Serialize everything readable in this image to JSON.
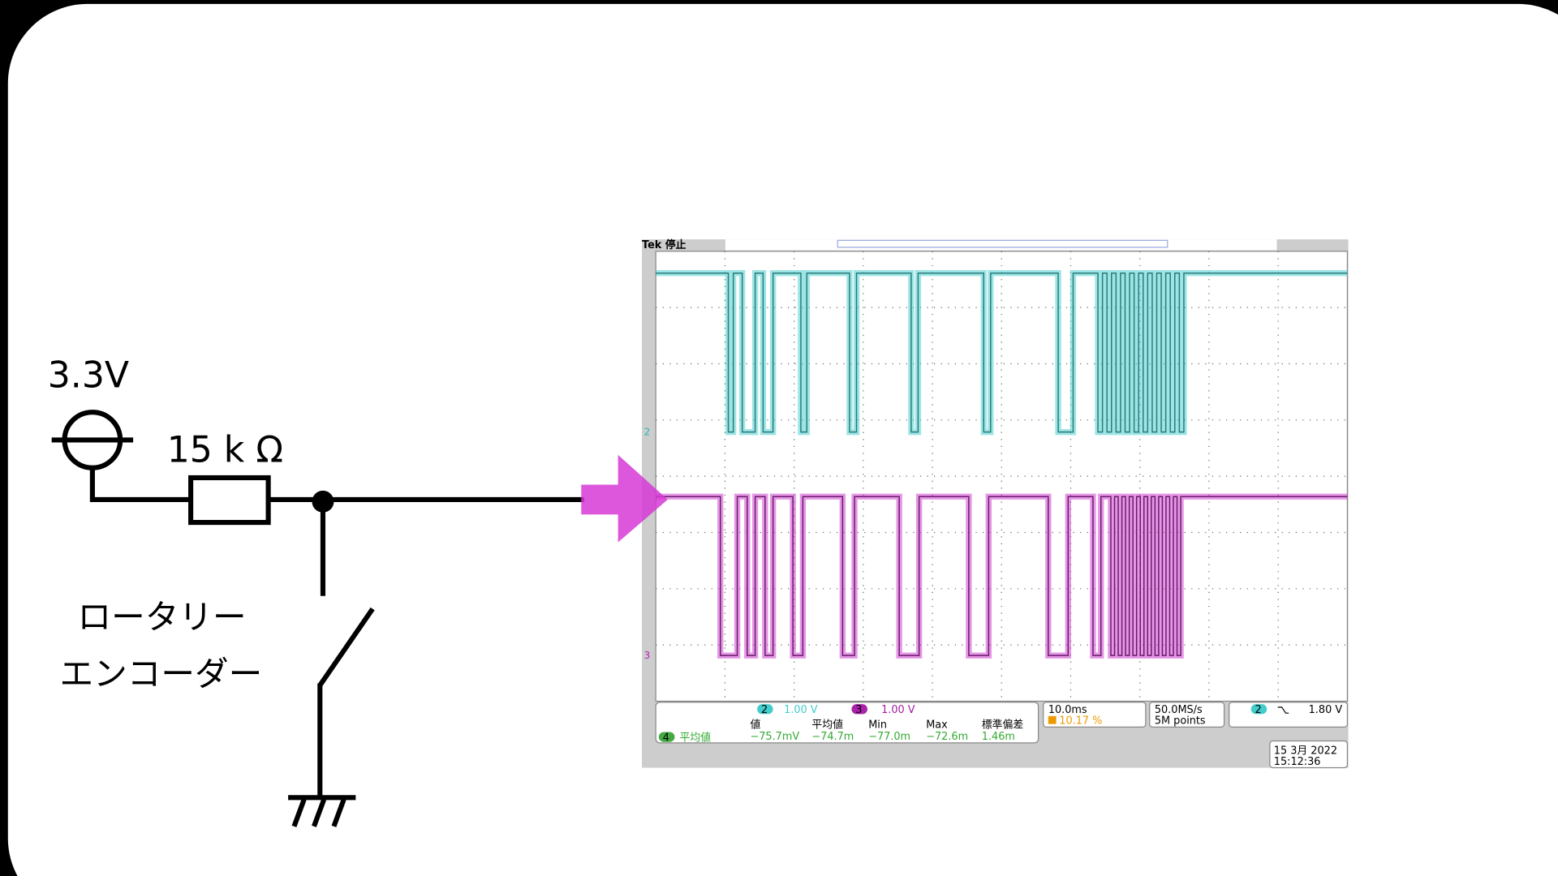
{
  "circuit": {
    "supply_label": "3.3V",
    "resistor_label": "15 k Ω",
    "device_label_line1": "ロータリー",
    "device_label_line2": "エンコーダー"
  },
  "scope": {
    "status": "Tek 停止",
    "ch2_marker": "2",
    "ch3_marker": "3",
    "channels": [
      {
        "number": "2",
        "scale": "1.00 V"
      },
      {
        "number": "3",
        "scale": "1.00 V"
      }
    ],
    "timebase": "10.0ms",
    "trigger_position": "10.17 %",
    "sample_rate": "50.0MS/s",
    "record_length": "5M points",
    "trigger": {
      "channel": "2",
      "level": "1.80 V"
    },
    "measurement": {
      "channel": "4",
      "name": "平均値",
      "headers": [
        "値",
        "平均値",
        "Min",
        "Max",
        "標準偏差"
      ],
      "values": [
        "−75.7mV",
        "−74.7m",
        "−77.0m",
        "−72.6m",
        "1.46m"
      ]
    },
    "date": "15 3月  2022",
    "time": "15:12:36"
  }
}
